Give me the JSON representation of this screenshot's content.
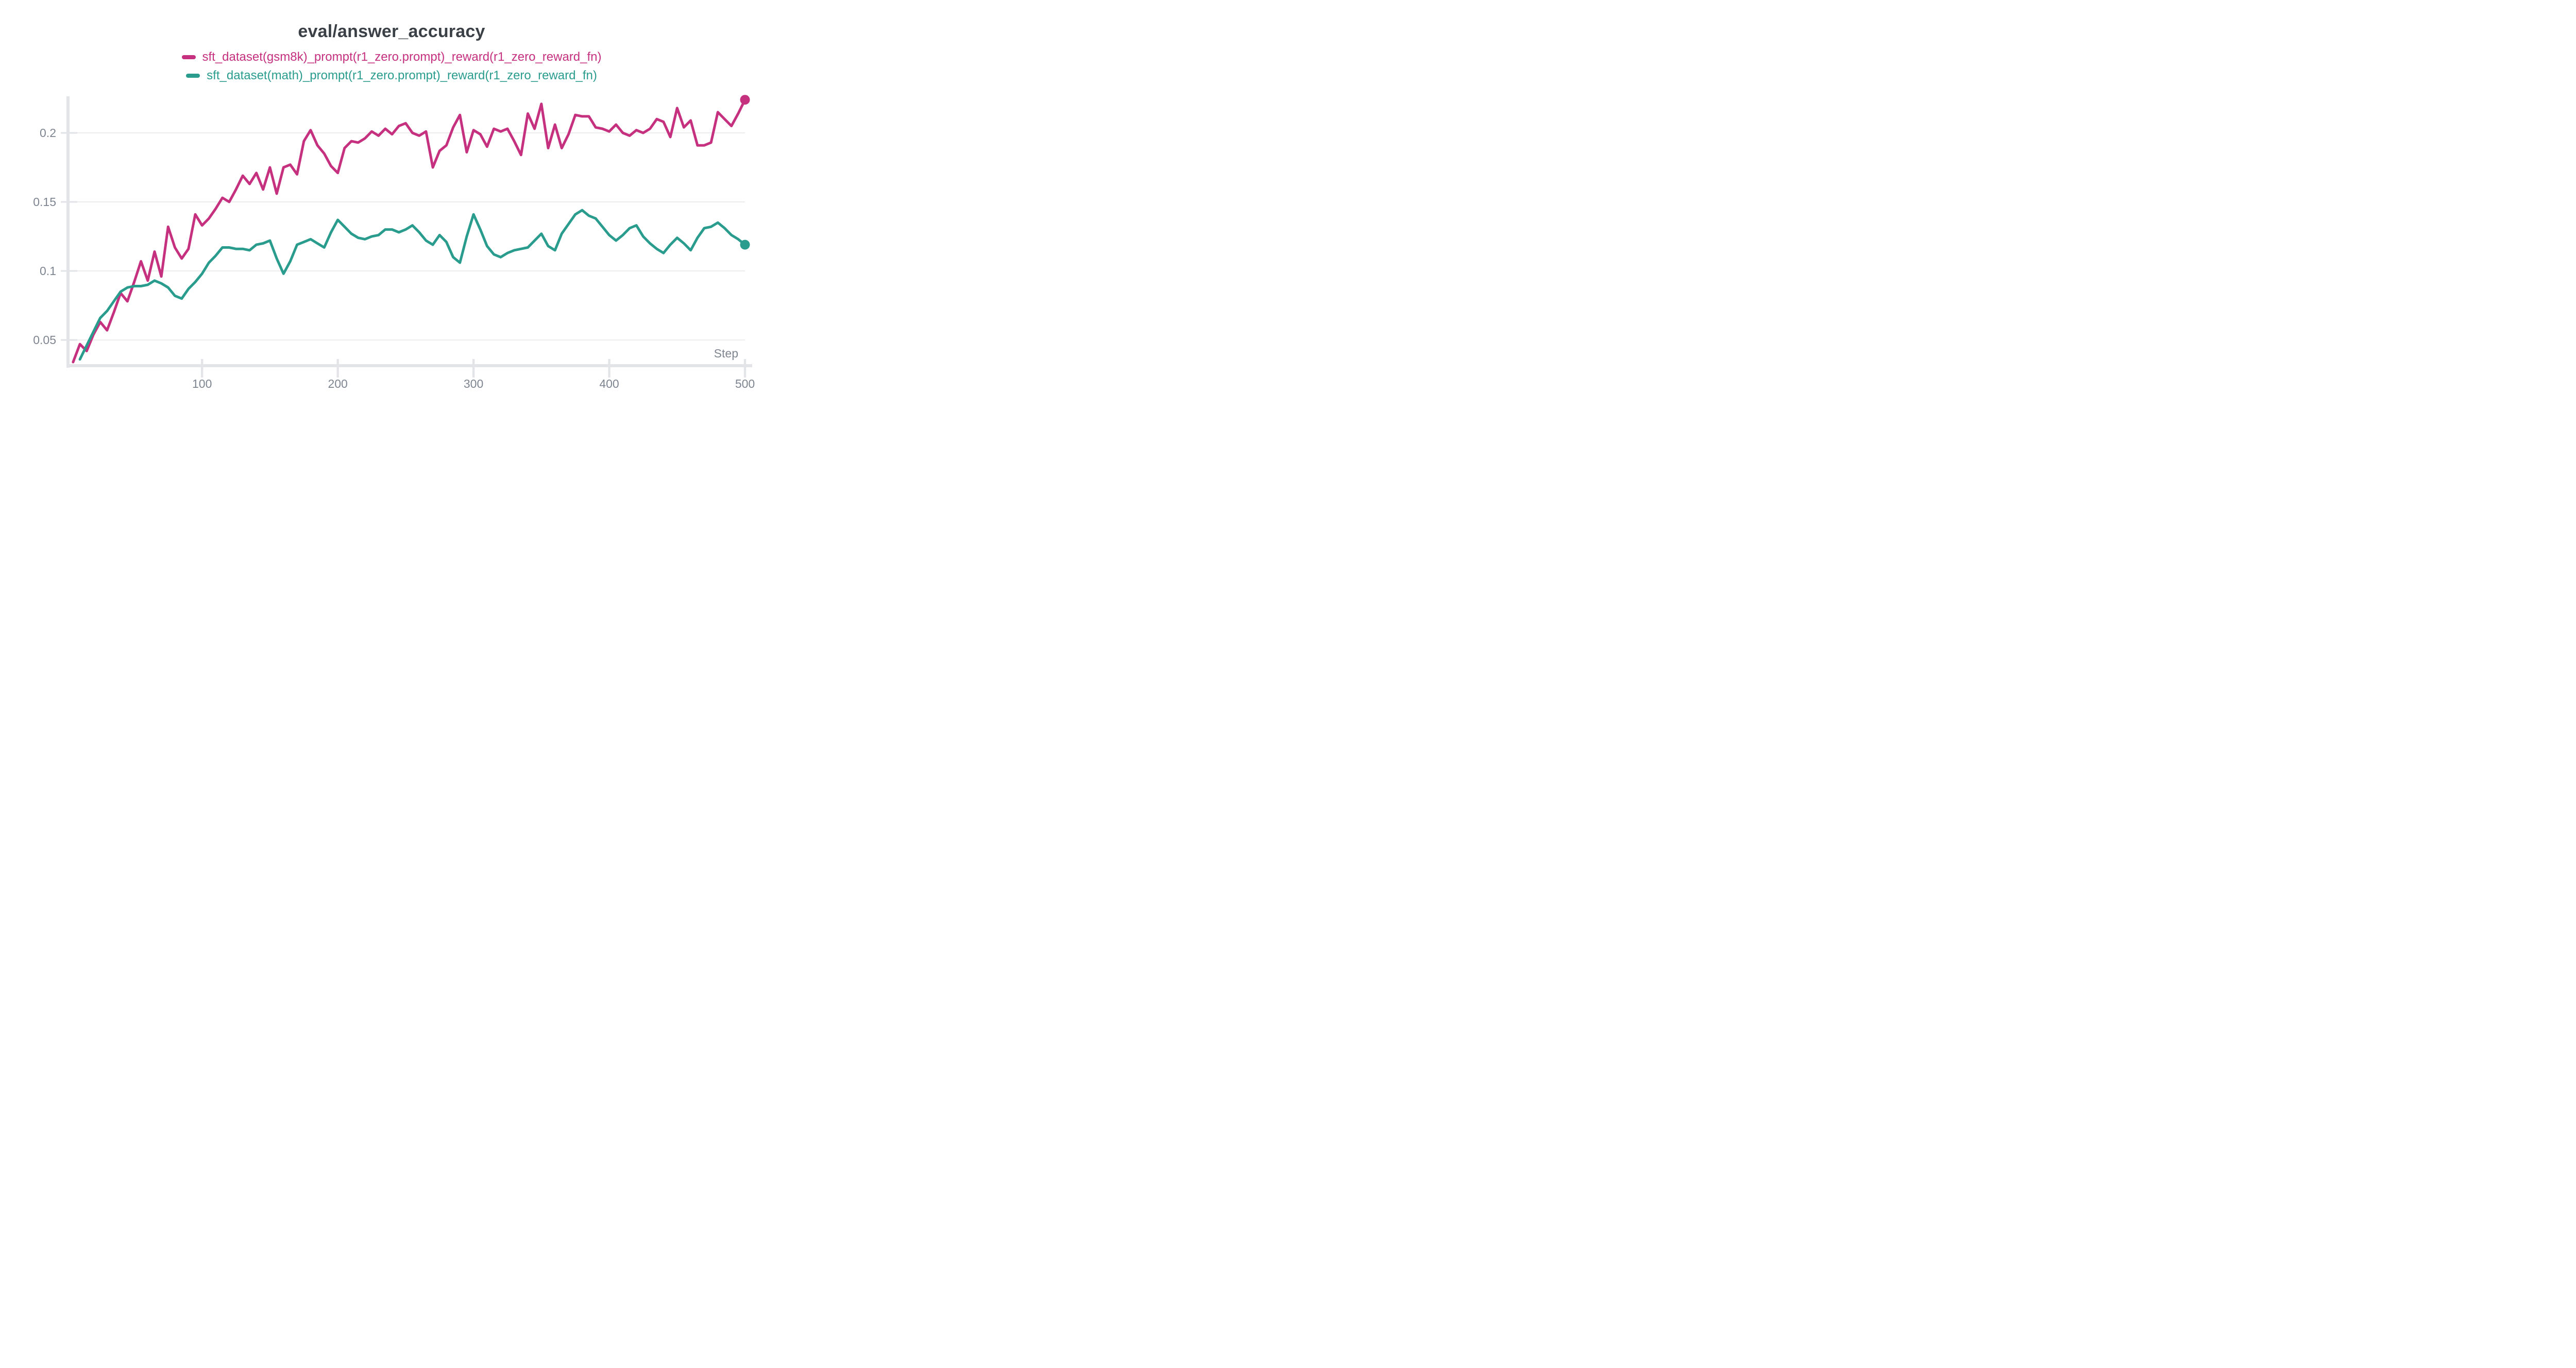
{
  "page": {
    "background": "#ffffff"
  },
  "chart_data": {
    "type": "line",
    "title": "eval/answer_accuracy",
    "xlabel": "Step",
    "xlabel_color": "#80868f",
    "title_color": "#3a4046",
    "tick_label_color": "#7e8590",
    "grid_color": "#ededef",
    "axis_color": "#e3e4e7",
    "legend_position": "top",
    "grid": true,
    "xlim": [
      2,
      500
    ],
    "ylim": [
      0.031,
      0.2265
    ],
    "xticks": [
      100,
      200,
      300,
      400,
      500
    ],
    "xtick_labels": [
      "100",
      "200",
      "300",
      "400",
      "500"
    ],
    "yticks": [
      0.05,
      0.1,
      0.15,
      0.2
    ],
    "ytick_labels": [
      "0.05",
      "0.1",
      "0.15",
      "0.2"
    ],
    "series": [
      {
        "name": "sft_dataset(gsm8k)_prompt(r1_zero.prompt)_reward(r1_zero_reward_fn)",
        "color": "#c5307f",
        "end_dot": true,
        "x": [
          5,
          10,
          15,
          20,
          25,
          30,
          35,
          40,
          45,
          50,
          55,
          60,
          65,
          70,
          75,
          80,
          85,
          90,
          95,
          100,
          105,
          110,
          115,
          120,
          125,
          130,
          135,
          140,
          145,
          150,
          155,
          160,
          165,
          170,
          175,
          180,
          185,
          190,
          195,
          200,
          205,
          210,
          215,
          220,
          225,
          230,
          235,
          240,
          245,
          250,
          255,
          260,
          265,
          270,
          275,
          280,
          285,
          290,
          295,
          300,
          305,
          310,
          315,
          320,
          325,
          330,
          335,
          340,
          345,
          350,
          355,
          360,
          365,
          370,
          375,
          380,
          385,
          390,
          395,
          400,
          405,
          410,
          415,
          420,
          425,
          430,
          435,
          440,
          445,
          450,
          455,
          460,
          465,
          470,
          475,
          480,
          485,
          490,
          495,
          500
        ],
        "y": [
          0.034,
          0.047,
          0.042,
          0.054,
          0.063,
          0.057,
          0.07,
          0.084,
          0.078,
          0.092,
          0.107,
          0.093,
          0.114,
          0.096,
          0.132,
          0.117,
          0.109,
          0.116,
          0.141,
          0.133,
          0.138,
          0.145,
          0.153,
          0.15,
          0.159,
          0.169,
          0.163,
          0.171,
          0.159,
          0.175,
          0.156,
          0.175,
          0.177,
          0.17,
          0.194,
          0.202,
          0.191,
          0.185,
          0.176,
          0.171,
          0.189,
          0.194,
          0.193,
          0.196,
          0.201,
          0.198,
          0.203,
          0.199,
          0.205,
          0.207,
          0.2,
          0.198,
          0.201,
          0.175,
          0.187,
          0.191,
          0.204,
          0.213,
          0.186,
          0.202,
          0.199,
          0.19,
          0.203,
          0.201,
          0.203,
          0.194,
          0.184,
          0.214,
          0.203,
          0.221,
          0.189,
          0.206,
          0.189,
          0.199,
          0.213,
          0.212,
          0.212,
          0.204,
          0.203,
          0.201,
          0.206,
          0.2,
          0.198,
          0.202,
          0.2,
          0.203,
          0.21,
          0.208,
          0.197,
          0.218,
          0.204,
          0.209,
          0.191,
          0.191,
          0.193,
          0.215,
          0.21,
          0.205,
          0.214,
          0.224
        ]
      },
      {
        "name": "sft_dataset(math)_prompt(r1_zero.prompt)_reward(r1_zero_reward_fn)",
        "color": "#2a9c8e",
        "end_dot": true,
        "x": [
          10,
          15,
          20,
          25,
          30,
          35,
          40,
          45,
          50,
          55,
          60,
          65,
          70,
          75,
          80,
          85,
          90,
          95,
          100,
          105,
          110,
          115,
          120,
          125,
          130,
          135,
          140,
          145,
          150,
          155,
          160,
          165,
          170,
          175,
          180,
          185,
          190,
          195,
          200,
          205,
          210,
          215,
          220,
          225,
          230,
          235,
          240,
          245,
          250,
          255,
          260,
          265,
          270,
          275,
          280,
          285,
          290,
          295,
          300,
          305,
          310,
          315,
          320,
          325,
          330,
          335,
          340,
          345,
          350,
          355,
          360,
          365,
          370,
          375,
          380,
          385,
          390,
          395,
          400,
          405,
          410,
          415,
          420,
          425,
          430,
          435,
          440,
          445,
          450,
          455,
          460,
          465,
          470,
          475,
          480,
          485,
          490,
          495,
          500
        ],
        "y": [
          0.036,
          0.046,
          0.056,
          0.066,
          0.071,
          0.078,
          0.085,
          0.088,
          0.089,
          0.089,
          0.09,
          0.093,
          0.091,
          0.088,
          0.082,
          0.08,
          0.087,
          0.092,
          0.098,
          0.106,
          0.111,
          0.117,
          0.117,
          0.116,
          0.116,
          0.115,
          0.119,
          0.12,
          0.122,
          0.109,
          0.098,
          0.107,
          0.119,
          0.121,
          0.123,
          0.12,
          0.117,
          0.128,
          0.137,
          0.132,
          0.127,
          0.124,
          0.123,
          0.125,
          0.126,
          0.13,
          0.13,
          0.128,
          0.13,
          0.133,
          0.128,
          0.122,
          0.119,
          0.126,
          0.121,
          0.11,
          0.106,
          0.125,
          0.141,
          0.13,
          0.118,
          0.112,
          0.11,
          0.113,
          0.115,
          0.116,
          0.117,
          0.122,
          0.127,
          0.118,
          0.115,
          0.127,
          0.134,
          0.141,
          0.144,
          0.14,
          0.138,
          0.132,
          0.126,
          0.122,
          0.126,
          0.131,
          0.133,
          0.125,
          0.12,
          0.116,
          0.113,
          0.119,
          0.124,
          0.12,
          0.115,
          0.124,
          0.131,
          0.132,
          0.135,
          0.131,
          0.126,
          0.123,
          0.119
        ]
      }
    ]
  }
}
